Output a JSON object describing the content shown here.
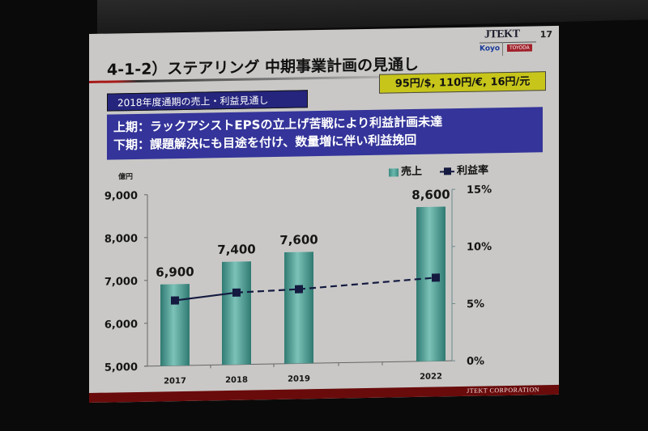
{
  "slide": {
    "number": "17",
    "title": "4-1-2）ステアリング 中期事業計画の見通し",
    "logo": {
      "main": "JTEKT",
      "left": "Koyo",
      "right": "TOYODA"
    },
    "subtitle": "2018年度通期の売上・利益見通し",
    "fx_rates": "95円/$, 110円/€, 16円/元",
    "summary": [
      "上期：ラックアシストEPSの立上げ苦戦により利益計画未達",
      "下期：課題解決にも目途を付け、数量増に伴い利益挽回"
    ],
    "footer": "JTEKT  CORPORATION"
  },
  "chart_data": {
    "type": "bar",
    "title": "",
    "categories": [
      "2017",
      "2018",
      "2019",
      "2022"
    ],
    "series": [
      {
        "name": "売上",
        "type": "bar",
        "axis": "left",
        "values": [
          6900,
          7400,
          7600,
          8600
        ],
        "labels": [
          "6,900",
          "7,400",
          "7,600",
          "8,600"
        ],
        "color": "#4a9a90"
      },
      {
        "name": "利益率",
        "type": "line",
        "axis": "right",
        "values": [
          5.7,
          6.3,
          6.5,
          7.3
        ],
        "color": "#141a40",
        "style_note": "solid 2017-2018, dashed 2018-2022"
      }
    ],
    "xlabel": "",
    "ylabel": "億円",
    "ylim": [
      5000,
      9000
    ],
    "yticks": [
      "5,000",
      "6,000",
      "7,000",
      "8,000",
      "9,000"
    ],
    "y2lim": [
      0,
      15
    ],
    "y2ticks": [
      "0%",
      "5%",
      "10%",
      "15%"
    ],
    "legend_position": "top-right",
    "grid": false
  }
}
